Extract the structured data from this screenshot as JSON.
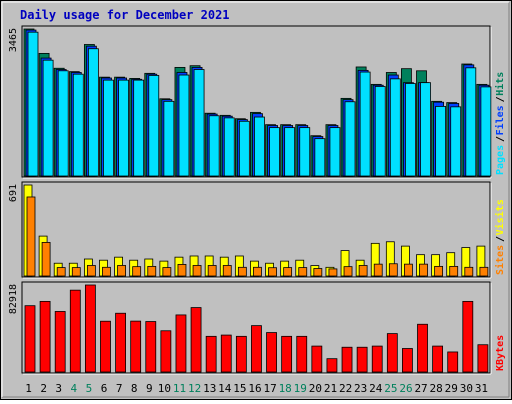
{
  "title": "Daily usage for December 2021",
  "colors": {
    "background": "#C0C0C0",
    "title_text": "#0000C0",
    "hits": "#00805C",
    "files": "#0040FF",
    "pages": "#00E0FF",
    "visits": "#FFFF00",
    "sites": "#FF8000",
    "kbytes": "#FF0000",
    "day_black": "#000000",
    "day_weekend": "#00805C"
  },
  "chart_data": [
    {
      "type": "bar",
      "name": "hits-files-pages-panel",
      "ymax_label": "3465",
      "ylim": [
        0,
        3465
      ],
      "legend": [
        {
          "label": "Pages",
          "color": "#00E0FF"
        },
        {
          "label": "Files",
          "color": "#0040FF"
        },
        {
          "label": "Hits",
          "color": "#00805C"
        }
      ],
      "categories": [
        "1",
        "2",
        "3",
        "4",
        "5",
        "6",
        "7",
        "8",
        "9",
        "10",
        "11",
        "12",
        "13",
        "14",
        "15",
        "16",
        "17",
        "18",
        "19",
        "20",
        "21",
        "22",
        "23",
        "24",
        "25",
        "26",
        "27",
        "28",
        "29",
        "30",
        "31"
      ],
      "series": [
        {
          "name": "Hits",
          "values": [
            3465,
            2890,
            2540,
            2460,
            3100,
            2330,
            2330,
            2300,
            2420,
            1820,
            2560,
            2600,
            1480,
            1430,
            1350,
            1500,
            1210,
            1210,
            1210,
            950,
            1210,
            1830,
            2570,
            2160,
            2440,
            2530,
            2480,
            1760,
            1730,
            2640,
            2160
          ]
        },
        {
          "name": "Files",
          "values": [
            3440,
            2780,
            2510,
            2440,
            3060,
            2310,
            2310,
            2280,
            2400,
            1800,
            2440,
            2560,
            1460,
            1410,
            1330,
            1470,
            1190,
            1190,
            1190,
            930,
            1190,
            1800,
            2490,
            2140,
            2380,
            2200,
            2200,
            1740,
            1710,
            2620,
            2140
          ]
        },
        {
          "name": "Pages",
          "values": [
            3390,
            2730,
            2480,
            2400,
            3000,
            2260,
            2260,
            2260,
            2370,
            1760,
            2380,
            2510,
            1420,
            1370,
            1290,
            1390,
            1140,
            1140,
            1140,
            880,
            1140,
            1750,
            2450,
            2110,
            2290,
            2180,
            2200,
            1640,
            1630,
            2550,
            2100
          ]
        }
      ]
    },
    {
      "type": "bar",
      "name": "visits-sites-panel",
      "ymax_label": "691",
      "ylim": [
        0,
        691
      ],
      "legend": [
        {
          "label": "Sites",
          "color": "#FF8000"
        },
        {
          "label": "Visits",
          "color": "#FFFF00"
        }
      ],
      "categories": [
        "1",
        "2",
        "3",
        "4",
        "5",
        "6",
        "7",
        "8",
        "9",
        "10",
        "11",
        "12",
        "13",
        "14",
        "15",
        "16",
        "17",
        "18",
        "19",
        "20",
        "21",
        "22",
        "23",
        "24",
        "25",
        "26",
        "27",
        "28",
        "29",
        "30",
        "31"
      ],
      "series": [
        {
          "name": "Visits",
          "values": [
            691,
            303,
            97,
            97,
            129,
            120,
            143,
            120,
            129,
            113,
            143,
            152,
            152,
            143,
            152,
            113,
            97,
            113,
            120,
            79,
            66,
            193,
            120,
            248,
            260,
            227,
            162,
            162,
            177,
            216,
            227
          ]
        },
        {
          "name": "Sites",
          "values": [
            600,
            255,
            64,
            64,
            80,
            66,
            80,
            71,
            73,
            64,
            88,
            80,
            80,
            80,
            66,
            66,
            63,
            64,
            64,
            57,
            54,
            71,
            80,
            90,
            93,
            90,
            90,
            73,
            73,
            66,
            66
          ]
        }
      ]
    },
    {
      "type": "bar",
      "name": "kbytes-panel",
      "ymax_label": "82918",
      "ylim": [
        0,
        82918
      ],
      "legend": [
        {
          "label": "KBytes",
          "color": "#FF0000"
        }
      ],
      "categories": [
        "1",
        "2",
        "3",
        "4",
        "5",
        "6",
        "7",
        "8",
        "9",
        "10",
        "11",
        "12",
        "13",
        "14",
        "15",
        "16",
        "17",
        "18",
        "19",
        "20",
        "21",
        "22",
        "23",
        "24",
        "25",
        "26",
        "27",
        "28",
        "29",
        "30",
        "31"
      ],
      "series": [
        {
          "name": "KBytes",
          "values": [
            63200,
            67300,
            57700,
            78000,
            82918,
            48400,
            56000,
            48500,
            48100,
            39300,
            54400,
            61400,
            34000,
            35200,
            34000,
            44200,
            37600,
            34000,
            34000,
            24700,
            12700,
            23600,
            23600,
            24700,
            36600,
            22400,
            45500,
            24700,
            19100,
            67300,
            26000
          ]
        }
      ]
    }
  ],
  "day_labels": [
    {
      "label": "1",
      "weekend": false
    },
    {
      "label": "2",
      "weekend": false
    },
    {
      "label": "3",
      "weekend": false
    },
    {
      "label": "4",
      "weekend": true
    },
    {
      "label": "5",
      "weekend": true
    },
    {
      "label": "6",
      "weekend": false
    },
    {
      "label": "7",
      "weekend": false
    },
    {
      "label": "8",
      "weekend": false
    },
    {
      "label": "9",
      "weekend": false
    },
    {
      "label": "10",
      "weekend": false
    },
    {
      "label": "11",
      "weekend": true
    },
    {
      "label": "12",
      "weekend": true
    },
    {
      "label": "13",
      "weekend": false
    },
    {
      "label": "14",
      "weekend": false
    },
    {
      "label": "15",
      "weekend": false
    },
    {
      "label": "16",
      "weekend": false
    },
    {
      "label": "17",
      "weekend": false
    },
    {
      "label": "18",
      "weekend": true
    },
    {
      "label": "19",
      "weekend": true
    },
    {
      "label": "20",
      "weekend": false
    },
    {
      "label": "21",
      "weekend": false
    },
    {
      "label": "22",
      "weekend": false
    },
    {
      "label": "23",
      "weekend": false
    },
    {
      "label": "24",
      "weekend": false
    },
    {
      "label": "25",
      "weekend": true
    },
    {
      "label": "26",
      "weekend": true
    },
    {
      "label": "27",
      "weekend": false
    },
    {
      "label": "28",
      "weekend": false
    },
    {
      "label": "29",
      "weekend": false
    },
    {
      "label": "30",
      "weekend": false
    },
    {
      "label": "31",
      "weekend": false
    }
  ]
}
